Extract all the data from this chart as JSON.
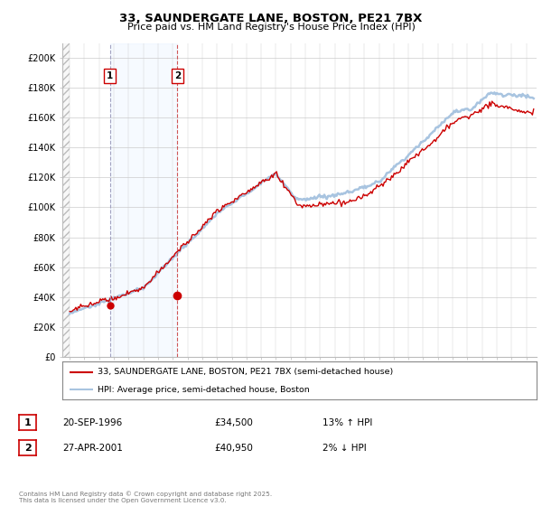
{
  "title": "33, SAUNDERGATE LANE, BOSTON, PE21 7BX",
  "subtitle": "Price paid vs. HM Land Registry's House Price Index (HPI)",
  "ylabel_ticks": [
    "£0",
    "£20K",
    "£40K",
    "£60K",
    "£80K",
    "£100K",
    "£120K",
    "£140K",
    "£160K",
    "£180K",
    "£200K"
  ],
  "ytick_values": [
    0,
    20000,
    40000,
    60000,
    80000,
    100000,
    120000,
    140000,
    160000,
    180000,
    200000
  ],
  "ylim": [
    0,
    210000
  ],
  "xlim_start": 1993.5,
  "xlim_end": 2025.7,
  "sale1_date": 1996.72,
  "sale1_price": 34500,
  "sale1_label": "1",
  "sale2_date": 2001.32,
  "sale2_price": 40950,
  "sale2_label": "2",
  "hpi_color": "#a8c4e0",
  "price_color": "#cc0000",
  "sale1_vline_color": "#aaaacc",
  "sale2_vline_color": "#cc4444",
  "shade_color": "#ddeeff",
  "legend_line1": "33, SAUNDERGATE LANE, BOSTON, PE21 7BX (semi-detached house)",
  "legend_line2": "HPI: Average price, semi-detached house, Boston",
  "table_row1": [
    "1",
    "20-SEP-1996",
    "£34,500",
    "13% ↑ HPI"
  ],
  "table_row2": [
    "2",
    "27-APR-2001",
    "£40,950",
    "2% ↓ HPI"
  ],
  "footnote": "Contains HM Land Registry data © Crown copyright and database right 2025.\nThis data is licensed under the Open Government Licence v3.0.",
  "background_color": "#ffffff"
}
